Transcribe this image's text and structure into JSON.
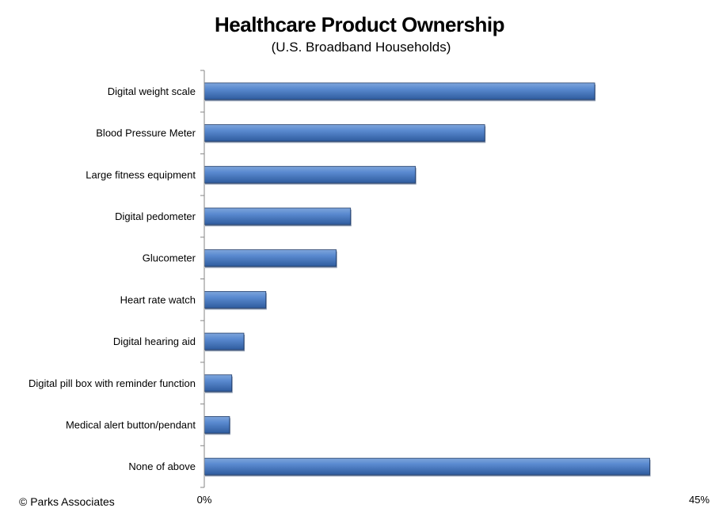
{
  "chart_data": {
    "type": "bar",
    "orientation": "horizontal",
    "title": "Healthcare Product Ownership",
    "subtitle": "(U.S. Broadband Households)",
    "categories": [
      "Digital weight scale",
      "Blood Pressure Meter",
      "Large fitness equipment",
      "Digital pedometer",
      "Glucometer",
      "Heart rate watch",
      "Digital hearing aid",
      "Digital pill box with reminder function",
      "Medical alert button/pendant",
      "None of above"
    ],
    "values": [
      35.5,
      25.5,
      19.2,
      13.3,
      12.0,
      5.6,
      3.6,
      2.5,
      2.3,
      40.5
    ],
    "xlim": [
      0,
      45
    ],
    "x_tick_labels": [
      "0%",
      "45%"
    ],
    "unit": "%",
    "grid": false,
    "legend": "none",
    "bar_color": "#4A7BC0",
    "bar_edge_color": "#1F3A66"
  },
  "footer": {
    "copyright": "© Parks Associates"
  }
}
